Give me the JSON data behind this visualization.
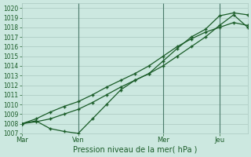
{
  "bg_color": "#cce8e0",
  "grid_color": "#aac8c0",
  "line_color": "#1a5c28",
  "vline_color": "#4a7a6a",
  "xlabel": "Pression niveau de la mer( hPa )",
  "ylim": [
    1007,
    1020.5
  ],
  "xlim": [
    0,
    192
  ],
  "yticks": [
    1007,
    1008,
    1009,
    1010,
    1011,
    1012,
    1013,
    1014,
    1015,
    1016,
    1017,
    1018,
    1019,
    1020
  ],
  "xtick_positions": [
    0,
    48,
    120,
    168
  ],
  "xtick_labels": [
    "Mar",
    "Ven",
    "Mer",
    "Jeu"
  ],
  "vline_positions": [
    48,
    120,
    168
  ],
  "series1_x": [
    0,
    12,
    24,
    36,
    48,
    60,
    72,
    84,
    96,
    108,
    120,
    132,
    144,
    156,
    168,
    180,
    192
  ],
  "series1_y": [
    1008,
    1008.2,
    1008.5,
    1009.0,
    1009.5,
    1010.2,
    1011.0,
    1011.8,
    1012.5,
    1013.2,
    1014.0,
    1015.0,
    1016.0,
    1017.0,
    1018.2,
    1019.3,
    1018.0
  ],
  "series2_x": [
    0,
    12,
    24,
    36,
    48,
    60,
    72,
    84,
    96,
    108,
    120,
    132,
    144,
    156,
    168,
    180,
    192
  ],
  "series2_y": [
    1008.0,
    1008.3,
    1007.5,
    1007.2,
    1007.0,
    1008.5,
    1010.0,
    1011.5,
    1012.5,
    1013.2,
    1014.5,
    1015.8,
    1017.0,
    1017.8,
    1019.2,
    1019.5,
    1019.3
  ],
  "series3_x": [
    0,
    12,
    24,
    36,
    48,
    60,
    72,
    84,
    96,
    108,
    120,
    132,
    144,
    156,
    168,
    180,
    192
  ],
  "series3_y": [
    1008.0,
    1008.5,
    1009.2,
    1009.8,
    1010.3,
    1011.0,
    1011.8,
    1012.5,
    1013.2,
    1014.0,
    1015.0,
    1016.0,
    1016.8,
    1017.5,
    1018.0,
    1018.5,
    1018.2
  ]
}
